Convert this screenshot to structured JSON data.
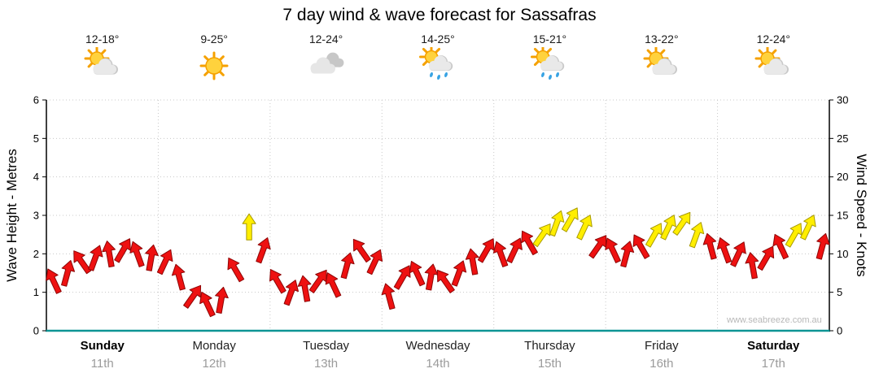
{
  "title": "7 day wind & wave forecast for Sassafras",
  "watermark": "www.seabreeze.com.au",
  "chart_data": {
    "type": "wind-arrows",
    "title": "7 day wind & wave forecast for Sassafras",
    "left_axis": {
      "label": "Wave Height - Metres",
      "min": 0,
      "max": 6,
      "ticks": [
        0,
        1,
        2,
        3,
        4,
        5,
        6
      ]
    },
    "right_axis": {
      "label": "Wind Speed - Knots",
      "min": 0,
      "max": 30,
      "ticks": [
        0,
        5,
        10,
        15,
        20,
        25,
        30
      ]
    },
    "days": [
      {
        "name": "Sunday",
        "date": "11th",
        "temp": "12-18°",
        "icon": "sun-cloud",
        "bold": true
      },
      {
        "name": "Monday",
        "date": "12th",
        "temp": "9-25°",
        "icon": "sun",
        "bold": false
      },
      {
        "name": "Tuesday",
        "date": "13th",
        "temp": "12-24°",
        "icon": "clouds",
        "bold": false
      },
      {
        "name": "Wednesday",
        "date": "14th",
        "temp": "14-25°",
        "icon": "sun-cloud-rain",
        "bold": false
      },
      {
        "name": "Thursday",
        "date": "15th",
        "temp": "15-21°",
        "icon": "sun-cloud-rain",
        "bold": false
      },
      {
        "name": "Friday",
        "date": "16th",
        "temp": "13-22°",
        "icon": "sun-cloud",
        "bold": false
      },
      {
        "name": "Saturday",
        "date": "17th",
        "temp": "12-24°",
        "icon": "sun-cloud",
        "bold": true
      }
    ],
    "points_per_day": 8,
    "wind_knots": [
      6.5,
      7.5,
      9,
      9.5,
      10,
      10.5,
      10,
      9.5,
      9,
      7,
      4.5,
      3.5,
      4,
      8,
      13.5,
      10.5,
      6.5,
      5,
      5.5,
      6.5,
      6,
      8.5,
      10.5,
      9,
      4.5,
      7,
      7.5,
      7,
      6.5,
      7.5,
      9,
      10.5,
      10,
      10.5,
      11.5,
      12.5,
      14,
      14.5,
      13.5,
      11,
      10.5,
      10,
      11,
      12.5,
      13.5,
      14,
      12.5,
      11,
      10.5,
      10,
      8.5,
      9.5,
      11,
      12.5,
      13.5,
      11
    ],
    "wind_dir_deg": [
      -25,
      15,
      -35,
      20,
      -10,
      30,
      -20,
      10,
      25,
      -15,
      35,
      -25,
      10,
      -30,
      0,
      20,
      -30,
      20,
      -10,
      35,
      -25,
      15,
      -35,
      25,
      -15,
      30,
      -25,
      10,
      -35,
      20,
      -10,
      30,
      -20,
      25,
      -30,
      35,
      20,
      30,
      25,
      35,
      -25,
      15,
      -30,
      30,
      25,
      35,
      20,
      -15,
      -20,
      25,
      -10,
      30,
      -25,
      30,
      25,
      15
    ],
    "wind_colors": [
      "red",
      "red",
      "red",
      "red",
      "red",
      "red",
      "red",
      "red",
      "red",
      "red",
      "red",
      "red",
      "red",
      "red",
      "yellow",
      "red",
      "red",
      "red",
      "red",
      "red",
      "red",
      "red",
      "red",
      "red",
      "red",
      "red",
      "red",
      "red",
      "red",
      "red",
      "red",
      "red",
      "red",
      "red",
      "red",
      "yellow",
      "yellow",
      "yellow",
      "yellow",
      "red",
      "red",
      "red",
      "red",
      "yellow",
      "yellow",
      "yellow",
      "yellow",
      "red",
      "red",
      "red",
      "red",
      "red",
      "red",
      "yellow",
      "yellow",
      "red"
    ],
    "palette": {
      "red": "#ee1111",
      "yellow": "#ffee00"
    },
    "outline": {
      "red": "#8d0606",
      "yellow": "#a89a00"
    },
    "axis_color": "#000000",
    "baseline_color": "#0e9494",
    "grid_color": "#c8c8c8"
  }
}
